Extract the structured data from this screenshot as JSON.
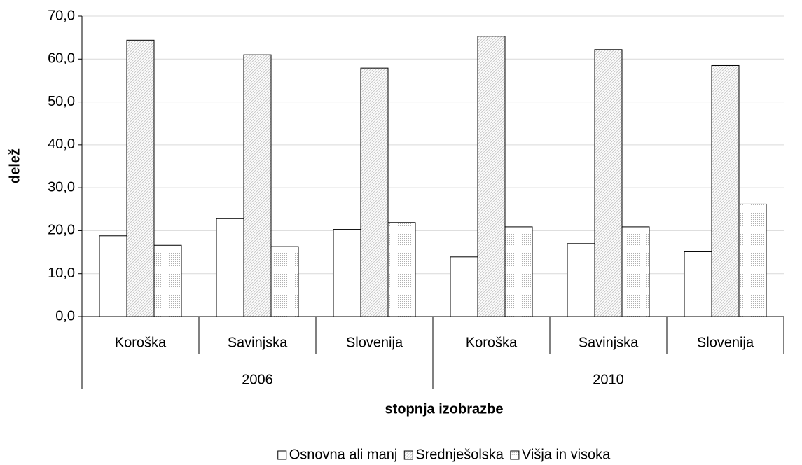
{
  "chart_data": {
    "type": "bar",
    "y_label": "delež",
    "x_label": "stopnja izobrazbe",
    "categories": [
      "Koroška",
      "Savinjska",
      "Slovenija",
      "Koroška",
      "Savinjska",
      "Slovenija"
    ],
    "category_groups": [
      "2006",
      "2010"
    ],
    "series": [
      {
        "name": "Osnovna ali manj",
        "color": "#ffffff",
        "pattern": "none",
        "values": [
          18.8,
          22.8,
          20.3,
          13.9,
          17.0,
          15.1
        ]
      },
      {
        "name": "Srednješolska",
        "color": "#c8c8c8",
        "pattern": "diagonal",
        "values": [
          64.4,
          61.0,
          57.9,
          65.3,
          62.2,
          58.5
        ]
      },
      {
        "name": "Višja in visoka",
        "color": "#b0b0b0",
        "pattern": "dots",
        "values": [
          16.6,
          16.3,
          21.9,
          20.9,
          20.9,
          26.2
        ]
      }
    ],
    "ylim": [
      0,
      70
    ],
    "yticks": [
      {
        "value": 0,
        "label": "0,0"
      },
      {
        "value": 10,
        "label": "10,0"
      },
      {
        "value": 20,
        "label": "20,0"
      },
      {
        "value": 30,
        "label": "30,0"
      },
      {
        "value": 40,
        "label": "40,0"
      },
      {
        "value": 50,
        "label": "50,0"
      },
      {
        "value": 60,
        "label": "60,0"
      },
      {
        "value": 70,
        "label": "70,0"
      }
    ],
    "grid": true,
    "legend": "bottom"
  }
}
